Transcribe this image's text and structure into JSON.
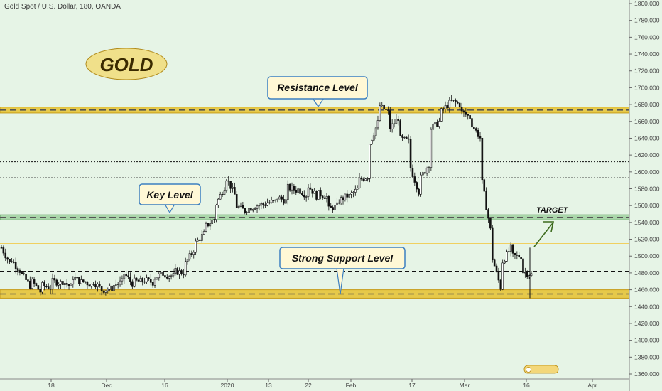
{
  "header": {
    "title": "Gold Spot / U.S. Dollar, 180, OANDA"
  },
  "logo": {
    "text": "GOLD"
  },
  "callouts": {
    "resistance": "Resistance Level",
    "key": "Key Level",
    "support": "Strong Support Level",
    "target": "TARGET"
  },
  "colors": {
    "background": "#e6f4e6",
    "zone_gold": "#e6c94a",
    "zone_green": "#a9d5a9",
    "candle": "#111111",
    "arrow": "#3d6b1e"
  },
  "chart_data": {
    "type": "candlestick",
    "title": "Gold Spot / U.S. Dollar, 180, OANDA",
    "ylim": [
      1350,
      1810
    ],
    "y_ticks": [
      "1360.000",
      "1380.000",
      "1400.000",
      "1420.000",
      "1440.000",
      "1460.000",
      "1480.000",
      "1500.000",
      "1520.000",
      "1540.000",
      "1560.000",
      "1580.000",
      "1600.000",
      "1620.000",
      "1640.000",
      "1660.000",
      "1680.000",
      "1700.000",
      "1720.000",
      "1740.000",
      "1760.000",
      "1780.000",
      "1800.000"
    ],
    "x_ticks": [
      "18",
      "Dec",
      "16",
      "2020",
      "13",
      "22",
      "Feb",
      "17",
      "Mar",
      "16",
      "Apr"
    ],
    "price_path": [
      [
        1510,
        1488
      ],
      [
        1495,
        1480
      ],
      [
        1478,
        1462
      ],
      [
        1470,
        1455
      ],
      [
        1465,
        1462
      ],
      [
        1470,
        1468
      ],
      [
        1470,
        1462
      ],
      [
        1475,
        1468
      ],
      [
        1470,
        1465
      ],
      [
        1470,
        1458
      ],
      [
        1460,
        1462
      ],
      [
        1465,
        1470
      ],
      [
        1480,
        1465
      ],
      [
        1470,
        1470
      ],
      [
        1472,
        1468
      ],
      [
        1474,
        1480
      ],
      [
        1478,
        1476
      ],
      [
        1482,
        1480
      ],
      [
        1490,
        1510
      ],
      [
        1515,
        1528
      ],
      [
        1535,
        1545
      ],
      [
        1560,
        1585
      ],
      [
        1595,
        1570
      ],
      [
        1560,
        1553
      ],
      [
        1555,
        1560
      ],
      [
        1560,
        1562
      ],
      [
        1563,
        1565
      ],
      [
        1570,
        1565
      ],
      [
        1582,
        1578
      ],
      [
        1580,
        1572
      ],
      [
        1585,
        1570
      ],
      [
        1575,
        1570
      ],
      [
        1555,
        1560
      ],
      [
        1565,
        1572
      ],
      [
        1570,
        1580
      ],
      [
        1590,
        1595
      ],
      [
        1630,
        1660
      ],
      [
        1680,
        1670
      ],
      [
        1650,
        1665
      ],
      [
        1640,
        1636
      ],
      [
        1610,
        1575
      ],
      [
        1590,
        1610
      ],
      [
        1650,
        1660
      ],
      [
        1670,
        1682
      ],
      [
        1685,
        1680
      ],
      [
        1672,
        1665
      ],
      [
        1660,
        1640
      ],
      [
        1600,
        1530
      ],
      [
        1505,
        1462
      ],
      [
        1490,
        1510
      ],
      [
        1500,
        1500
      ],
      [
        1482,
        1478
      ]
    ],
    "horizontal_levels": [
      {
        "kind": "zone",
        "color": "gold",
        "from": 1670,
        "to": 1677
      },
      {
        "kind": "zone",
        "color": "green",
        "from": 1543,
        "to": 1549
      },
      {
        "kind": "zone",
        "color": "gold",
        "from": 1450,
        "to": 1460
      },
      {
        "kind": "dotted",
        "value": 1612
      },
      {
        "kind": "dotted",
        "value": 1593
      },
      {
        "kind": "dashed",
        "value": 1482
      },
      {
        "kind": "thin",
        "value": 1515
      }
    ],
    "grid": false
  }
}
